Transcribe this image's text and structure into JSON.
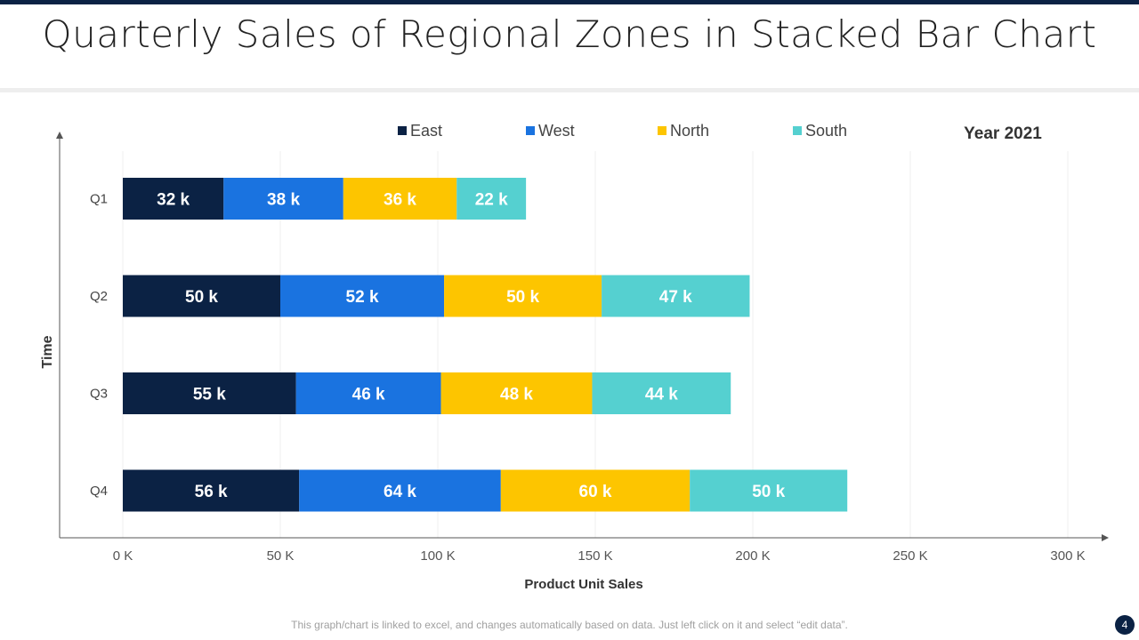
{
  "title": "Quarterly Sales of Regional Zones in Stacked Bar Chart",
  "footer": "This graph/chart is linked to excel, and changes automatically based on data. Just left click on it and select “edit data”.",
  "page_number": "4",
  "chart_data": {
    "type": "bar",
    "orientation": "horizontal",
    "stacked": true,
    "annotation": "Year 2021",
    "xlabel": "Product Unit Sales",
    "ylabel": "Time",
    "xlim": [
      0,
      300
    ],
    "x_ticks": [
      "0 K",
      "50 K",
      "100 K",
      "150 K",
      "200 K",
      "250 K",
      "300 K"
    ],
    "categories": [
      "Q1",
      "Q2",
      "Q3",
      "Q4"
    ],
    "grid": "vertical",
    "legend_position": "top",
    "series": [
      {
        "name": "East",
        "color": "#0b2244",
        "values": [
          32,
          50,
          55,
          56
        ],
        "labels": [
          "32 k",
          "50 k",
          "55 k",
          "56 k"
        ]
      },
      {
        "name": "West",
        "color": "#1a73e0",
        "values": [
          38,
          52,
          46,
          64
        ],
        "labels": [
          "38 k",
          "52 k",
          "46 k",
          "64 k"
        ]
      },
      {
        "name": "North",
        "color": "#fdc500",
        "values": [
          36,
          50,
          48,
          60
        ],
        "labels": [
          "36 k",
          "50 k",
          "48 k",
          "60 k"
        ]
      },
      {
        "name": "South",
        "color": "#55d0d0",
        "values": [
          22,
          47,
          44,
          50
        ],
        "labels": [
          "22 k",
          "47 k",
          "44 k",
          "50 k"
        ]
      }
    ]
  }
}
